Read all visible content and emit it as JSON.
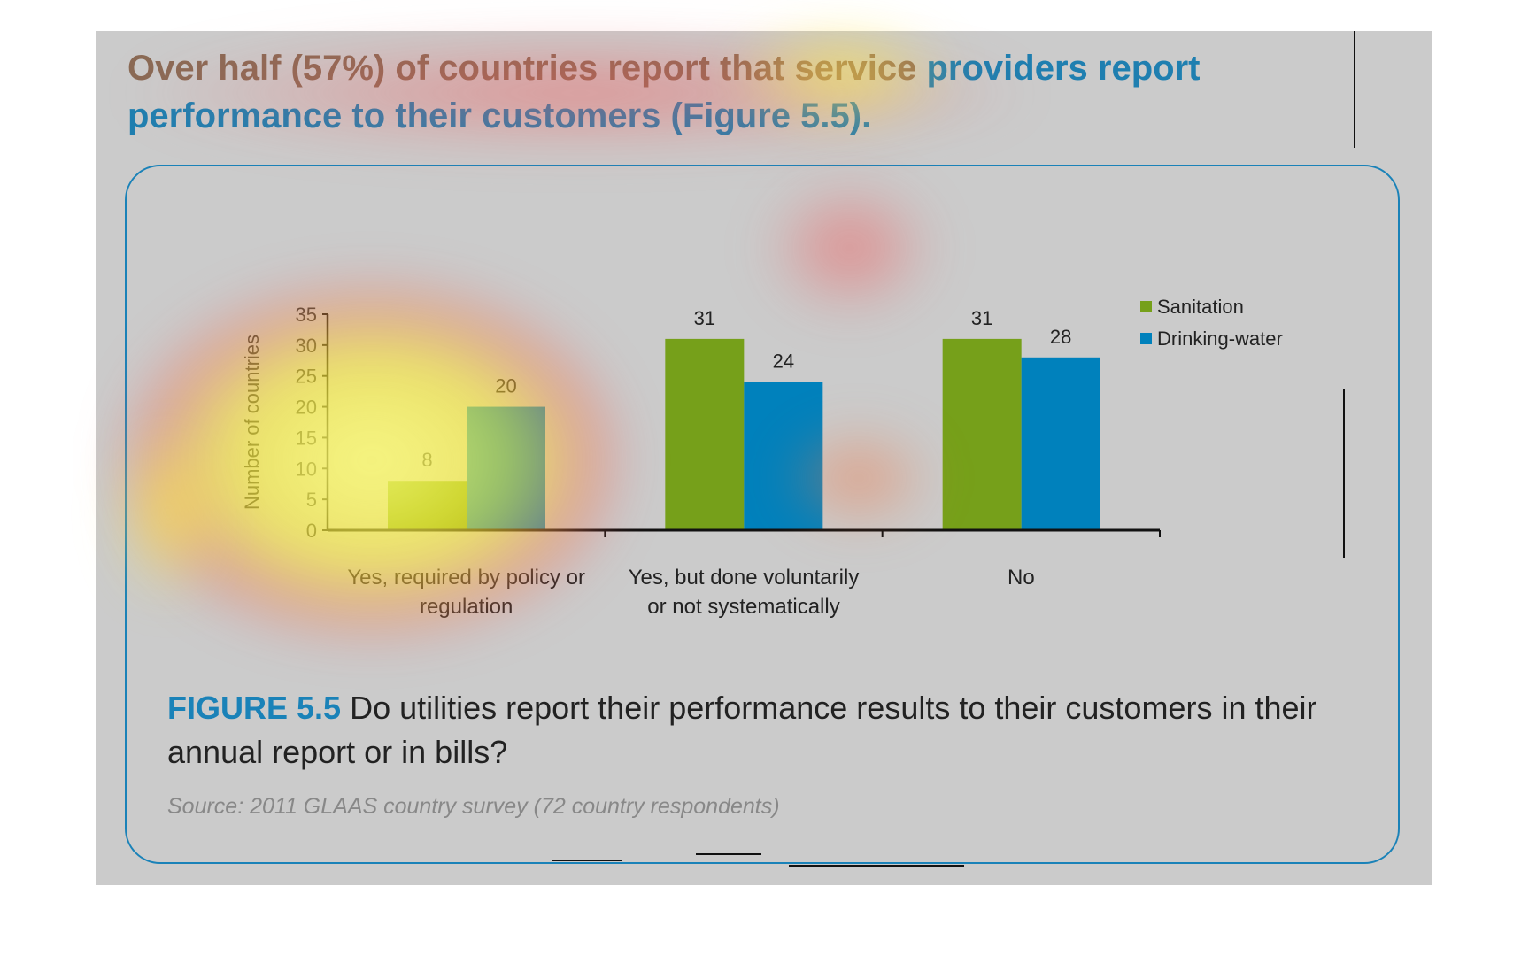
{
  "headline": {
    "part1": "Over half (57%) of countries report that service ",
    "part2": "providers report performance to their customers (Figure 5.5)."
  },
  "chart_data": {
    "type": "bar",
    "categories": [
      "Yes, required by policy or regulation",
      "Yes, but done voluntarily or not systematically",
      "No"
    ],
    "category_lines": [
      [
        "Yes, required by policy or",
        "regulation"
      ],
      [
        "Yes, but done voluntarily",
        "or not systematically"
      ],
      [
        "No"
      ]
    ],
    "series": [
      {
        "name": "Sanitation",
        "values": [
          8,
          31,
          31
        ],
        "color": "#76a01a"
      },
      {
        "name": "Drinking-water",
        "values": [
          20,
          24,
          28
        ],
        "color": "#0081bc"
      }
    ],
    "ylabel": "Number of countries",
    "xlabel": "",
    "ylim": [
      0,
      35
    ],
    "yticks": [
      0,
      5,
      10,
      15,
      20,
      25,
      30,
      35
    ],
    "legend": "top-right",
    "grid": false
  },
  "caption": {
    "label": "FIGURE 5.5",
    "text": " Do utilities report their performance results to their customers in their annual report or in bills?"
  },
  "source": "Source: 2011 GLAAS country survey (72 country respondents)"
}
